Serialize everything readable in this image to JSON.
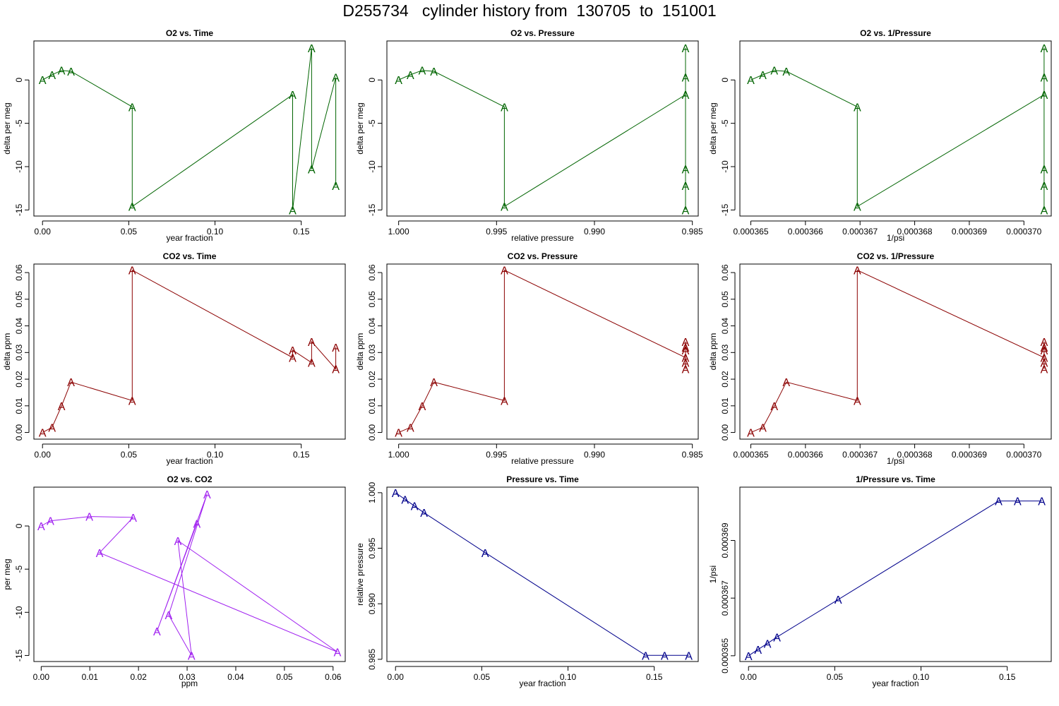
{
  "page": {
    "title": "D255734   cylinder history from  130705  to  151001"
  },
  "colors": {
    "o2": "#006400",
    "co2": "#8b0000",
    "o2co2": "#a020f0",
    "pressure": "#00008b"
  },
  "chart_data": [
    {
      "type": "line",
      "title": "O2 vs. Time",
      "xlabel": "year fraction",
      "ylabel": "delta per meg",
      "color_key": "o2",
      "marker": "A",
      "xlim": [
        -0.005,
        0.1755
      ],
      "ylim": [
        -15.7,
        4.5
      ],
      "xticks": [
        0,
        0.05,
        0.1,
        0.15
      ],
      "xtick_labels": [
        "0.00",
        "0.05",
        "0.10",
        "0.15"
      ],
      "yticks": [
        0,
        -5,
        -10,
        -15
      ],
      "ytick_labels": [
        "0",
        "-5",
        "-10",
        "-15"
      ],
      "x": [
        0.0,
        0.0055,
        0.011,
        0.0165,
        0.052,
        0.052,
        0.145,
        0.145,
        0.156,
        0.156,
        0.17,
        0.17
      ],
      "y": [
        0.0,
        0.6,
        1.1,
        1.0,
        -3.1,
        -14.6,
        -1.7,
        -15.0,
        3.7,
        -10.3,
        0.3,
        -12.2
      ]
    },
    {
      "type": "line",
      "title": "O2 vs. Pressure",
      "xlabel": "relative pressure",
      "ylabel": "delta per meg",
      "color_key": "o2",
      "marker": "A",
      "xlim": [
        1.0006,
        0.9847
      ],
      "ylim": [
        -15.7,
        4.5
      ],
      "xticks": [
        1.0,
        0.995,
        0.99,
        0.985
      ],
      "xtick_labels": [
        "1.000",
        "0.995",
        "0.990",
        "0.985"
      ],
      "yticks": [
        0,
        -5,
        -10,
        -15
      ],
      "ytick_labels": [
        "0",
        "-5",
        "-10",
        "-15"
      ],
      "x": [
        1.0,
        0.9994,
        0.9988,
        0.9982,
        0.9946,
        0.9946,
        0.98535,
        0.98535,
        0.98535,
        0.98535,
        0.98535,
        0.98535
      ],
      "y": [
        0.0,
        0.6,
        1.1,
        1.0,
        -3.1,
        -14.6,
        -1.7,
        -15.0,
        3.7,
        -10.3,
        0.3,
        -12.2
      ]
    },
    {
      "type": "line",
      "title": "O2 vs. 1/Pressure",
      "xlabel": "1/psi",
      "ylabel": "delta per meg",
      "color_key": "o2",
      "marker": "A",
      "xlim": [
        0.0003648,
        0.0003705
      ],
      "ylim": [
        -15.7,
        4.5
      ],
      "xticks": [
        0.000365,
        0.000366,
        0.000367,
        0.000368,
        0.000369,
        0.00037
      ],
      "xtick_labels": [
        "0.000365",
        "0.000366",
        "0.000367",
        "0.000368",
        "0.000369",
        "0.000370"
      ],
      "yticks": [
        0,
        -5,
        -10,
        -15
      ],
      "ytick_labels": [
        "0",
        "-5",
        "-10",
        "-15"
      ],
      "x": [
        0.000365,
        0.00036522,
        0.00036543,
        0.00036565,
        0.00036695,
        0.00036695,
        0.00037037,
        0.00037037,
        0.00037037,
        0.00037037,
        0.00037037,
        0.00037037
      ],
      "y": [
        0.0,
        0.6,
        1.1,
        1.0,
        -3.1,
        -14.6,
        -1.7,
        -15.0,
        3.7,
        -10.3,
        0.3,
        -12.2
      ]
    },
    {
      "type": "line",
      "title": "CO2 vs. Time",
      "xlabel": "year fraction",
      "ylabel": "delta ppm",
      "color_key": "co2",
      "marker": "A",
      "xlim": [
        -0.005,
        0.1755
      ],
      "ylim": [
        -0.0025,
        0.0632
      ],
      "xticks": [
        0,
        0.05,
        0.1,
        0.15
      ],
      "xtick_labels": [
        "0.00",
        "0.05",
        "0.10",
        "0.15"
      ],
      "yticks": [
        0,
        0.01,
        0.02,
        0.03,
        0.04,
        0.05,
        0.06
      ],
      "ytick_labels": [
        "0.00",
        "0.01",
        "0.02",
        "0.03",
        "0.04",
        "0.05",
        "0.06"
      ],
      "x": [
        0.0,
        0.0055,
        0.011,
        0.0165,
        0.052,
        0.052,
        0.145,
        0.145,
        0.156,
        0.156,
        0.17,
        0.17
      ],
      "y": [
        0.0,
        0.0019,
        0.0099,
        0.0189,
        0.012,
        0.0609,
        0.0281,
        0.0309,
        0.0262,
        0.0341,
        0.0238,
        0.032
      ]
    },
    {
      "type": "line",
      "title": "CO2 vs. Pressure",
      "xlabel": "relative pressure",
      "ylabel": "delta ppm",
      "color_key": "co2",
      "marker": "A",
      "xlim": [
        1.0006,
        0.9847
      ],
      "ylim": [
        -0.0025,
        0.0632
      ],
      "xticks": [
        1.0,
        0.995,
        0.99,
        0.985
      ],
      "xtick_labels": [
        "1.000",
        "0.995",
        "0.990",
        "0.985"
      ],
      "yticks": [
        0,
        0.01,
        0.02,
        0.03,
        0.04,
        0.05,
        0.06
      ],
      "ytick_labels": [
        "0.00",
        "0.01",
        "0.02",
        "0.03",
        "0.04",
        "0.05",
        "0.06"
      ],
      "x": [
        1.0,
        0.9994,
        0.9988,
        0.9982,
        0.9946,
        0.9946,
        0.98535,
        0.98535,
        0.98535,
        0.98535,
        0.98535,
        0.98535
      ],
      "y": [
        0.0,
        0.0019,
        0.0099,
        0.0189,
        0.012,
        0.0609,
        0.0281,
        0.0309,
        0.0262,
        0.0341,
        0.0238,
        0.032
      ]
    },
    {
      "type": "line",
      "title": "CO2 vs. 1/Pressure",
      "xlabel": "1/psi",
      "ylabel": "delta ppm",
      "color_key": "co2",
      "marker": "A",
      "xlim": [
        0.0003648,
        0.0003705
      ],
      "ylim": [
        -0.0025,
        0.0632
      ],
      "xticks": [
        0.000365,
        0.000366,
        0.000367,
        0.000368,
        0.000369,
        0.00037
      ],
      "xtick_labels": [
        "0.000365",
        "0.000366",
        "0.000367",
        "0.000368",
        "0.000369",
        "0.000370"
      ],
      "yticks": [
        0,
        0.01,
        0.02,
        0.03,
        0.04,
        0.05,
        0.06
      ],
      "ytick_labels": [
        "0.00",
        "0.01",
        "0.02",
        "0.03",
        "0.04",
        "0.05",
        "0.06"
      ],
      "x": [
        0.000365,
        0.00036522,
        0.00036543,
        0.00036565,
        0.00036695,
        0.00036695,
        0.00037037,
        0.00037037,
        0.00037037,
        0.00037037,
        0.00037037,
        0.00037037
      ],
      "y": [
        0.0,
        0.0019,
        0.0099,
        0.0189,
        0.012,
        0.0609,
        0.0281,
        0.0309,
        0.0262,
        0.0341,
        0.0238,
        0.032
      ]
    },
    {
      "type": "line",
      "title": "O2 vs. CO2",
      "xlabel": "ppm",
      "ylabel": "per meg",
      "color_key": "o2co2",
      "marker": "A",
      "xlim": [
        -0.0015,
        0.0625
      ],
      "ylim": [
        -15.7,
        4.5
      ],
      "xticks": [
        0,
        0.01,
        0.02,
        0.03,
        0.04,
        0.05,
        0.06
      ],
      "xtick_labels": [
        "0.00",
        "0.01",
        "0.02",
        "0.03",
        "0.04",
        "0.05",
        "0.06"
      ],
      "yticks": [
        0,
        -5,
        -10,
        -15
      ],
      "ytick_labels": [
        "0",
        "-5",
        "-10",
        "-15"
      ],
      "x": [
        0.0,
        0.0019,
        0.0099,
        0.0189,
        0.012,
        0.0609,
        0.0281,
        0.0309,
        0.0262,
        0.0341,
        0.0238,
        0.032
      ],
      "y": [
        0.0,
        0.6,
        1.1,
        1.0,
        -3.1,
        -14.6,
        -1.7,
        -15.0,
        -10.3,
        3.7,
        -12.2,
        0.3
      ]
    },
    {
      "type": "line",
      "title": "Pressure vs. Time",
      "xlabel": "year fraction",
      "ylabel": "relative pressure",
      "color_key": "pressure",
      "marker": "A",
      "xlim": [
        -0.005,
        0.1755
      ],
      "ylim": [
        0.9848,
        1.0005
      ],
      "xticks": [
        0,
        0.05,
        0.1,
        0.15
      ],
      "xtick_labels": [
        "0.00",
        "0.05",
        "0.10",
        "0.15"
      ],
      "yticks": [
        0.985,
        0.99,
        0.995,
        1.0
      ],
      "ytick_labels": [
        "0.985",
        "0.990",
        "0.995",
        "1.000"
      ],
      "x": [
        0.0,
        0.0055,
        0.011,
        0.0165,
        0.052,
        0.145,
        0.156,
        0.17
      ],
      "y": [
        1.0,
        0.9994,
        0.9988,
        0.9982,
        0.9946,
        0.98535,
        0.98535,
        0.98535
      ]
    },
    {
      "type": "line",
      "title": "1/Pressure vs. Time",
      "xlabel": "year fraction",
      "ylabel": "1/psi",
      "color_key": "pressure",
      "marker": "A",
      "xlim": [
        -0.005,
        0.1755
      ],
      "ylim": [
        0.0003648,
        0.00037085
      ],
      "xticks": [
        0,
        0.05,
        0.1,
        0.15
      ],
      "xtick_labels": [
        "0.00",
        "0.05",
        "0.10",
        "0.15"
      ],
      "yticks": [
        0.000365,
        0.000367,
        0.000369
      ],
      "ytick_labels": [
        "0.000365",
        "0.000367",
        "0.000369"
      ],
      "x": [
        0.0,
        0.0055,
        0.011,
        0.0165,
        0.052,
        0.145,
        0.156,
        0.17
      ],
      "y": [
        0.000365,
        0.00036522,
        0.00036543,
        0.00036565,
        0.00036695,
        0.00037037,
        0.00037037,
        0.00037037
      ]
    }
  ]
}
